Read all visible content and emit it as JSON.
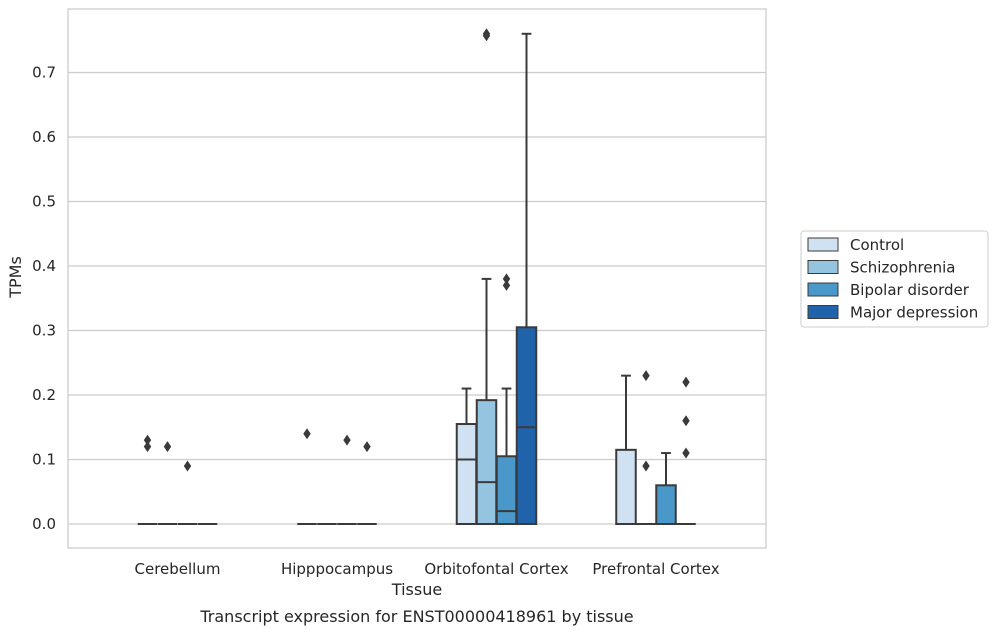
{
  "chart_data": {
    "type": "box",
    "caption": "Transcript expression for ENST00000418961 by tissue",
    "xlabel": "Tissue",
    "ylabel": "TPMs",
    "ylim": [
      -0.037,
      0.8
    ],
    "yticks": [
      "0.0",
      "0.1",
      "0.2",
      "0.3",
      "0.4",
      "0.5",
      "0.6",
      "0.7"
    ],
    "grid": "horizontal",
    "legend_position": "right",
    "categories": [
      "Cerebellum",
      "Hipppocampus",
      "Orbitofontal Cortex",
      "Prefrontal Cortex"
    ],
    "series": [
      {
        "name": "Control",
        "color": "#d0e1f2",
        "boxes": [
          {
            "q1": 0,
            "median": 0,
            "q3": 0,
            "whisker_low": 0,
            "whisker_high": 0,
            "outliers": [
              0.13,
              0.12
            ]
          },
          {
            "q1": 0,
            "median": 0,
            "q3": 0,
            "whisker_low": 0,
            "whisker_high": 0,
            "outliers": [
              0.14
            ]
          },
          {
            "q1": 0,
            "median": 0.1,
            "q3": 0.155,
            "whisker_low": 0,
            "whisker_high": 0.21,
            "outliers": []
          },
          {
            "q1": 0,
            "median": 0,
            "q3": 0.115,
            "whisker_low": 0,
            "whisker_high": 0.23,
            "outliers": []
          }
        ]
      },
      {
        "name": "Schizophrenia",
        "color": "#94c4df",
        "boxes": [
          {
            "q1": 0,
            "median": 0,
            "q3": 0,
            "whisker_low": 0,
            "whisker_high": 0,
            "outliers": [
              0.12
            ]
          },
          {
            "q1": 0,
            "median": 0,
            "q3": 0,
            "whisker_low": 0,
            "whisker_high": 0,
            "outliers": []
          },
          {
            "q1": 0,
            "median": 0.065,
            "q3": 0.192,
            "whisker_low": 0,
            "whisker_high": 0.38,
            "outliers": [
              0.76,
              0.757
            ]
          },
          {
            "q1": 0,
            "median": 0,
            "q3": 0,
            "whisker_low": 0,
            "whisker_high": 0,
            "outliers": [
              0.09,
              0.23
            ]
          }
        ]
      },
      {
        "name": "Bipolar disorder",
        "color": "#4a98c9",
        "boxes": [
          {
            "q1": 0,
            "median": 0,
            "q3": 0,
            "whisker_low": 0,
            "whisker_high": 0,
            "outliers": [
              0.09
            ]
          },
          {
            "q1": 0,
            "median": 0,
            "q3": 0,
            "whisker_low": 0,
            "whisker_high": 0,
            "outliers": [
              0.13
            ]
          },
          {
            "q1": 0,
            "median": 0.02,
            "q3": 0.105,
            "whisker_low": 0,
            "whisker_high": 0.21,
            "outliers": [
              0.38,
              0.37
            ]
          },
          {
            "q1": 0,
            "median": 0,
            "q3": 0.06,
            "whisker_low": 0,
            "whisker_high": 0.11,
            "outliers": []
          }
        ]
      },
      {
        "name": "Major depression",
        "color": "#2163aa",
        "boxes": [
          {
            "q1": 0,
            "median": 0,
            "q3": 0,
            "whisker_low": 0,
            "whisker_high": 0,
            "outliers": []
          },
          {
            "q1": 0,
            "median": 0,
            "q3": 0,
            "whisker_low": 0,
            "whisker_high": 0,
            "outliers": [
              0.12
            ]
          },
          {
            "q1": 0,
            "median": 0.15,
            "q3": 0.305,
            "whisker_low": 0,
            "whisker_high": 0.76,
            "outliers": []
          },
          {
            "q1": 0,
            "median": 0,
            "q3": 0,
            "whisker_low": 0,
            "whisker_high": 0,
            "outliers": [
              0.22,
              0.16,
              0.11
            ]
          }
        ]
      }
    ]
  }
}
